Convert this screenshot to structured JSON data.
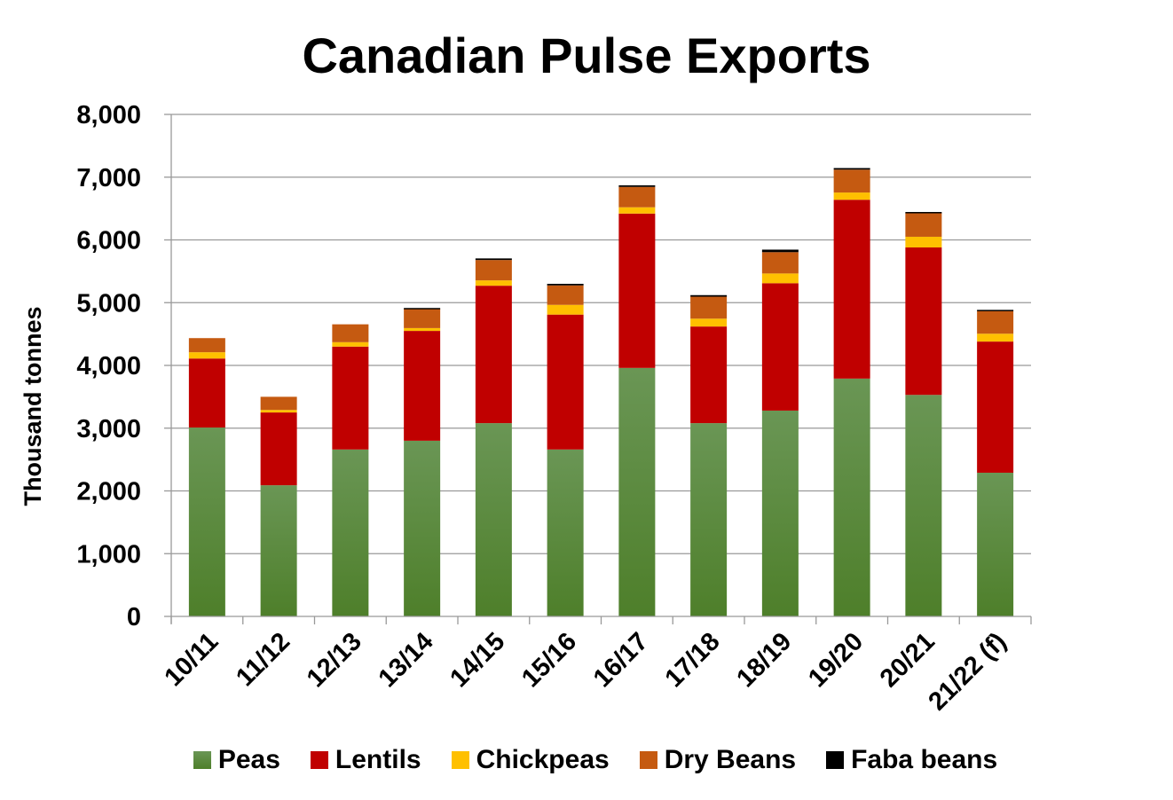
{
  "chart_data": {
    "type": "bar",
    "stacked": true,
    "title": "Canadian Pulse Exports",
    "xlabel": "",
    "ylabel": "Thousand tonnes",
    "ylim": [
      0,
      8000
    ],
    "yticks": [
      "0",
      "1,000",
      "2,000",
      "3,000",
      "4,000",
      "5,000",
      "6,000",
      "7,000",
      "8,000"
    ],
    "grid": true,
    "legend_position": "bottom",
    "categories": [
      "10/11",
      "11/12",
      "12/13",
      "13/14",
      "14/15",
      "15/16",
      "16/17",
      "17/18",
      "18/19",
      "19/20",
      "20/21",
      "21/22 (f)"
    ],
    "series": [
      {
        "name": "Peas",
        "color": "#548235",
        "values": [
          3010,
          2090,
          2660,
          2800,
          3080,
          2660,
          3960,
          3080,
          3280,
          3790,
          3530,
          2290
        ]
      },
      {
        "name": "Lentils",
        "color": "#C00000",
        "values": [
          1100,
          1160,
          1640,
          1750,
          2190,
          2150,
          2460,
          1540,
          2030,
          2850,
          2350,
          2090
        ]
      },
      {
        "name": "Chickpeas",
        "color": "#FFC000",
        "values": [
          100,
          40,
          70,
          45,
          85,
          155,
          100,
          125,
          155,
          115,
          170,
          125
        ]
      },
      {
        "name": "Dry Beans",
        "color": "#C55A11",
        "values": [
          225,
          210,
          285,
          310,
          325,
          310,
          325,
          350,
          340,
          365,
          380,
          365
        ]
      },
      {
        "name": "Faba beans",
        "color": "#000000",
        "values": [
          0,
          0,
          0,
          10,
          25,
          25,
          25,
          25,
          40,
          25,
          15,
          15
        ]
      }
    ]
  }
}
